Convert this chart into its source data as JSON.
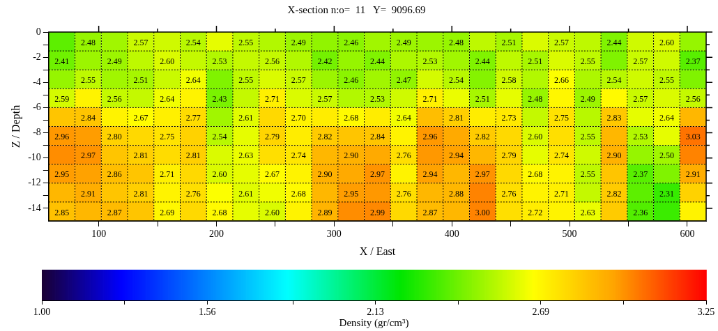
{
  "chart_data": {
    "type": "heatmap",
    "title": "X-section n:o=  11   Y=  9096.69",
    "xlabel": "X / East",
    "ylabel": "Z / Depth",
    "clabel": "Density (gr/cm³)",
    "xlim": [
      57.5,
      616
    ],
    "xticks": [
      {
        "value": 100,
        "label": "100"
      },
      {
        "value": 150,
        "label": null
      },
      {
        "value": 200,
        "label": "200"
      },
      {
        "value": 250,
        "label": null
      },
      {
        "value": 300,
        "label": "300"
      },
      {
        "value": 350,
        "label": null
      },
      {
        "value": 400,
        "label": "400"
      },
      {
        "value": 450,
        "label": null
      },
      {
        "value": 500,
        "label": "500"
      },
      {
        "value": 550,
        "label": null
      },
      {
        "value": 600,
        "label": "600"
      }
    ],
    "ylim": [
      -15,
      0
    ],
    "yticks": [
      0,
      {
        "value": -1,
        "label": null
      },
      -2,
      {
        "value": -3,
        "label": null
      },
      -4,
      {
        "value": -5,
        "label": null
      },
      -6,
      {
        "value": -7,
        "label": null
      },
      -8,
      {
        "value": -9,
        "label": null
      },
      -10,
      {
        "value": -11,
        "label": null
      },
      -12,
      {
        "value": -13,
        "label": null
      },
      -14
    ],
    "clim": [
      1,
      3.25
    ],
    "cticks": [
      {
        "value": 1,
        "label": "1.00"
      },
      {
        "value": 1.28,
        "label": null
      },
      1.56,
      {
        "value": 1.85,
        "label": null
      },
      2.13,
      {
        "value": 2.41,
        "label": null
      },
      2.69,
      {
        "value": 2.97,
        "label": null
      },
      3.25
    ],
    "cells": [
      [
        2.38,
        2.48,
        2.5,
        2.57,
        2.58,
        2.54,
        2.62,
        2.55,
        2.53,
        2.49,
        2.47,
        2.46,
        2.5,
        2.49,
        2.49,
        2.48,
        2.55,
        2.51,
        2.6,
        2.57,
        2.55,
        2.44,
        2.58,
        2.6,
        2.48
      ],
      [
        2.41,
        2.49,
        2.49,
        2.55,
        2.6,
        2.56,
        2.53,
        2.56,
        2.56,
        2.53,
        2.42,
        2.48,
        2.44,
        2.52,
        2.53,
        2.5,
        2.44,
        2.55,
        2.51,
        2.6,
        2.55,
        2.44,
        2.57,
        2.58,
        2.37
      ],
      [
        2.48,
        2.55,
        2.5,
        2.51,
        2.57,
        2.64,
        2.44,
        2.55,
        2.6,
        2.57,
        2.49,
        2.46,
        2.5,
        2.47,
        2.59,
        2.54,
        2.45,
        2.58,
        2.53,
        2.66,
        2.52,
        2.54,
        2.58,
        2.55,
        2.44
      ],
      [
        2.59,
        2.7,
        2.56,
        2.56,
        2.64,
        2.7,
        2.43,
        2.56,
        2.71,
        2.6,
        2.57,
        2.53,
        2.53,
        2.58,
        2.71,
        2.63,
        2.51,
        2.62,
        2.48,
        2.69,
        2.49,
        2.68,
        2.57,
        2.6,
        2.56
      ],
      [
        2.84,
        2.84,
        2.7,
        2.67,
        2.71,
        2.77,
        2.5,
        2.61,
        2.78,
        2.7,
        2.72,
        2.68,
        2.72,
        2.64,
        2.86,
        2.81,
        2.72,
        2.73,
        2.56,
        2.75,
        2.54,
        2.83,
        2.62,
        2.64,
        2.88
      ],
      [
        2.96,
        2.95,
        2.8,
        2.78,
        2.75,
        2.8,
        2.54,
        2.62,
        2.79,
        2.72,
        2.82,
        2.84,
        2.84,
        2.7,
        2.96,
        2.92,
        2.82,
        2.78,
        2.6,
        2.76,
        2.55,
        2.88,
        2.53,
        2.62,
        3.03
      ],
      [
        2.98,
        2.97,
        2.84,
        2.81,
        2.77,
        2.81,
        2.6,
        2.63,
        2.76,
        2.74,
        2.88,
        2.9,
        2.92,
        2.76,
        2.96,
        2.94,
        2.88,
        2.79,
        2.62,
        2.74,
        2.58,
        2.9,
        2.48,
        2.5,
        3.0
      ],
      [
        2.95,
        2.94,
        2.86,
        2.84,
        2.71,
        2.78,
        2.6,
        2.62,
        2.67,
        2.7,
        2.9,
        2.92,
        2.97,
        2.7,
        2.94,
        2.88,
        2.97,
        2.78,
        2.68,
        2.7,
        2.55,
        2.84,
        2.37,
        2.44,
        2.91
      ],
      [
        2.88,
        2.91,
        2.84,
        2.81,
        2.7,
        2.76,
        2.66,
        2.61,
        2.64,
        2.68,
        2.88,
        2.95,
        2.96,
        2.76,
        2.88,
        2.88,
        3.0,
        2.76,
        2.7,
        2.71,
        2.56,
        2.82,
        2.38,
        2.31,
        2.8
      ],
      [
        2.85,
        2.88,
        2.87,
        2.84,
        2.69,
        2.78,
        2.68,
        2.62,
        2.6,
        2.7,
        2.89,
        2.98,
        2.99,
        2.78,
        2.87,
        2.88,
        3.0,
        2.76,
        2.72,
        2.7,
        2.63,
        2.82,
        2.36,
        2.32,
        2.7
      ]
    ],
    "cell_labels": [
      [
        null,
        "2.48",
        null,
        "2.57",
        null,
        "2.54",
        null,
        "2.55",
        null,
        "2.49",
        null,
        "2.46",
        null,
        "2.49",
        null,
        "2.48",
        null,
        "2.51",
        null,
        "2.57",
        null,
        "2.44",
        null,
        "2.60",
        null
      ],
      [
        "2.41",
        null,
        "2.49",
        null,
        "2.60",
        null,
        "2.53",
        null,
        "2.56",
        null,
        "2.42",
        null,
        "2.44",
        null,
        "2.53",
        null,
        "2.44",
        null,
        "2.51",
        null,
        "2.55",
        null,
        "2.57",
        null,
        "2.37"
      ],
      [
        null,
        "2.55",
        null,
        "2.51",
        null,
        "2.64",
        null,
        "2.55",
        null,
        "2.57",
        null,
        "2.46",
        null,
        "2.47",
        null,
        "2.54",
        null,
        "2.58",
        null,
        "2.66",
        null,
        "2.54",
        null,
        "2.55",
        null
      ],
      [
        "2.59",
        null,
        "2.56",
        null,
        "2.64",
        null,
        "2.43",
        null,
        "2.71",
        null,
        "2.57",
        null,
        "2.53",
        null,
        "2.71",
        null,
        "2.51",
        null,
        "2.48",
        null,
        "2.49",
        null,
        "2.57",
        null,
        "2.56"
      ],
      [
        null,
        "2.84",
        null,
        "2.67",
        null,
        "2.77",
        null,
        "2.61",
        null,
        "2.70",
        null,
        "2.68",
        null,
        "2.64",
        null,
        "2.81",
        null,
        "2.73",
        null,
        "2.75",
        null,
        "2.83",
        null,
        "2.64",
        null
      ],
      [
        "2.96",
        null,
        "2.80",
        null,
        "2.75",
        null,
        "2.54",
        null,
        "2.79",
        null,
        "2.82",
        null,
        "2.84",
        null,
        "2.96",
        null,
        "2.82",
        null,
        "2.60",
        null,
        "2.55",
        null,
        "2.53",
        null,
        "3.03"
      ],
      [
        null,
        "2.97",
        null,
        "2.81",
        null,
        "2.81",
        null,
        "2.63",
        null,
        "2.74",
        null,
        "2.90",
        null,
        "2.76",
        null,
        "2.94",
        null,
        "2.79",
        null,
        "2.74",
        null,
        "2.90",
        null,
        "2.50",
        null
      ],
      [
        "2.95",
        null,
        "2.86",
        null,
        "2.71",
        null,
        "2.60",
        null,
        "2.67",
        null,
        "2.90",
        null,
        "2.97",
        null,
        "2.94",
        null,
        "2.97",
        null,
        "2.68",
        null,
        "2.55",
        null,
        "2.37",
        null,
        "2.91"
      ],
      [
        null,
        "2.91",
        null,
        "2.81",
        null,
        "2.76",
        null,
        "2.61",
        null,
        "2.68",
        null,
        "2.95",
        null,
        "2.76",
        null,
        "2.88",
        null,
        "2.76",
        null,
        "2.71",
        null,
        "2.82",
        null,
        "2.31",
        null
      ],
      [
        "2.85",
        null,
        "2.87",
        null,
        "2.69",
        null,
        "2.68",
        null,
        "2.60",
        null,
        "2.89",
        null,
        "2.99",
        null,
        "2.87",
        null,
        "3.00",
        null,
        "2.72",
        null,
        "2.63",
        null,
        "2.36",
        null,
        null
      ]
    ],
    "grid": true
  }
}
